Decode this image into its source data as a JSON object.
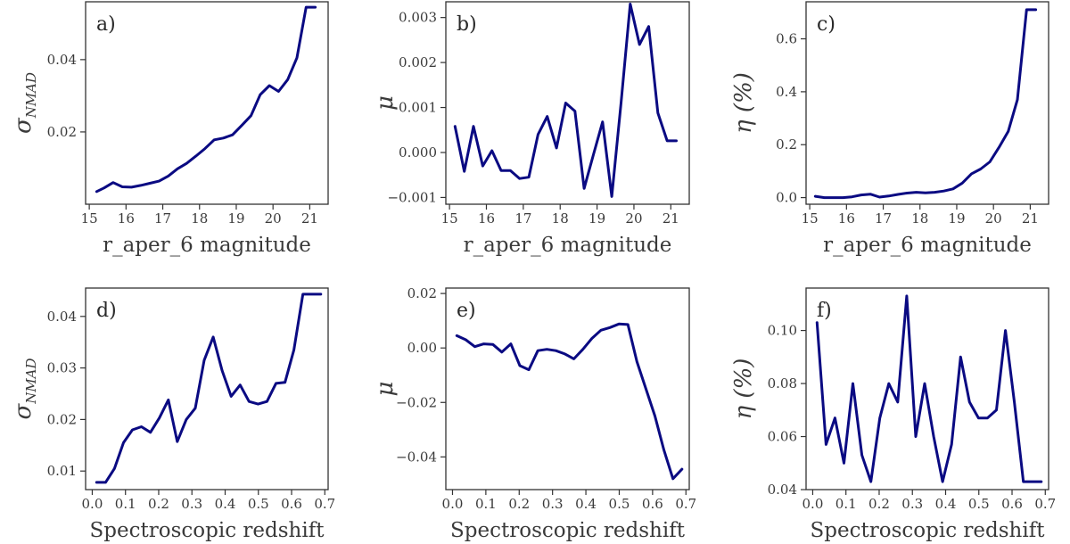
{
  "colors": {
    "line": "#0a0a82",
    "axis": "#333333",
    "text": "#3a3a3a"
  },
  "chart_data": [
    {
      "type": "line",
      "panel": "a)",
      "xlabel": "r_aper_6 magnitude",
      "ylabel_base": "σ",
      "ylabel_sub": "NMAD",
      "xlim": [
        14.9,
        21.5
      ],
      "ylim": [
        0.0,
        0.056
      ],
      "xticks": [
        15,
        16,
        17,
        18,
        19,
        20,
        21
      ],
      "yticks": [
        0.02,
        0.04
      ],
      "ytick_labels": [
        "0.02",
        "0.04"
      ],
      "x": [
        15.2,
        15.4,
        15.65,
        15.9,
        16.15,
        16.4,
        16.65,
        16.9,
        17.15,
        17.4,
        17.65,
        17.9,
        18.15,
        18.4,
        18.65,
        18.9,
        19.15,
        19.4,
        19.65,
        19.9,
        20.15,
        20.4,
        20.65,
        20.9,
        21.15
      ],
      "y": [
        0.0035,
        0.0045,
        0.006,
        0.0048,
        0.0047,
        0.0052,
        0.0058,
        0.0064,
        0.0078,
        0.0098,
        0.0113,
        0.0133,
        0.0154,
        0.0178,
        0.0183,
        0.0192,
        0.0218,
        0.0245,
        0.0303,
        0.0328,
        0.0312,
        0.0345,
        0.0405,
        0.0545,
        0.0545
      ]
    },
    {
      "type": "line",
      "panel": "b)",
      "xlabel": "r_aper_6 magnitude",
      "ylabel_base": "μ",
      "ylabel_sub": "",
      "xlim": [
        14.9,
        21.5
      ],
      "ylim": [
        -0.00115,
        0.00335
      ],
      "xticks": [
        15,
        16,
        17,
        18,
        19,
        20,
        21
      ],
      "yticks": [
        -0.001,
        0.0,
        0.001,
        0.002,
        0.003
      ],
      "ytick_labels": [
        "−0.001",
        "0.000",
        "0.001",
        "0.002",
        "0.003"
      ],
      "x": [
        15.15,
        15.4,
        15.65,
        15.9,
        16.15,
        16.4,
        16.65,
        16.9,
        17.15,
        17.4,
        17.65,
        17.9,
        18.15,
        18.4,
        18.65,
        18.9,
        19.15,
        19.4,
        19.65,
        19.9,
        20.15,
        20.4,
        20.65,
        20.9,
        21.15
      ],
      "y": [
        0.00058,
        -0.00042,
        0.00058,
        -0.0003,
        4e-05,
        -0.0004,
        -0.0004,
        -0.00058,
        -0.00055,
        0.0004,
        0.0008,
        0.0001,
        0.0011,
        0.00092,
        -0.0008,
        -5e-05,
        0.00068,
        -0.00098,
        0.0011,
        0.0033,
        0.0024,
        0.0028,
        0.00088,
        0.00026,
        0.00026
      ]
    },
    {
      "type": "line",
      "panel": "c)",
      "xlabel": "r_aper_6 magnitude",
      "ylabel_base": "η (%)",
      "ylabel_sub": "",
      "xlim": [
        14.9,
        21.5
      ],
      "ylim": [
        -0.025,
        0.74
      ],
      "xticks": [
        15,
        16,
        17,
        18,
        19,
        20,
        21
      ],
      "yticks": [
        0.0,
        0.2,
        0.4,
        0.6
      ],
      "ytick_labels": [
        "0.0",
        "0.2",
        "0.4",
        "0.6"
      ],
      "x": [
        15.15,
        15.4,
        15.65,
        15.9,
        16.15,
        16.4,
        16.65,
        16.9,
        17.15,
        17.4,
        17.65,
        17.9,
        18.15,
        18.4,
        18.65,
        18.9,
        19.15,
        19.4,
        19.65,
        19.9,
        20.15,
        20.4,
        20.65,
        20.9,
        21.15
      ],
      "y": [
        0.005,
        0.0,
        0.0,
        0.0,
        0.003,
        0.01,
        0.013,
        0.002,
        0.006,
        0.012,
        0.017,
        0.02,
        0.018,
        0.02,
        0.025,
        0.033,
        0.055,
        0.09,
        0.108,
        0.135,
        0.19,
        0.25,
        0.37,
        0.71,
        0.71
      ]
    },
    {
      "type": "line",
      "panel": "d)",
      "xlabel": "Spectroscopic redshift",
      "ylabel_base": "σ",
      "ylabel_sub": "NMAD",
      "xlim": [
        -0.02,
        0.71
      ],
      "ylim": [
        0.0064,
        0.0455
      ],
      "xticks": [
        0.0,
        0.1,
        0.2,
        0.3,
        0.4,
        0.5,
        0.6,
        0.7
      ],
      "xtick_labels": [
        "0.0",
        "0.1",
        "0.2",
        "0.3",
        "0.4",
        "0.5",
        "0.6",
        "0.7"
      ],
      "yticks": [
        0.01,
        0.02,
        0.03,
        0.04
      ],
      "ytick_labels": [
        "0.01",
        "0.02",
        "0.03",
        "0.04"
      ],
      "x": [
        0.013,
        0.04,
        0.067,
        0.094,
        0.121,
        0.148,
        0.175,
        0.202,
        0.229,
        0.256,
        0.283,
        0.31,
        0.337,
        0.364,
        0.391,
        0.418,
        0.445,
        0.472,
        0.499,
        0.526,
        0.553,
        0.58,
        0.607,
        0.634,
        0.661,
        0.688
      ],
      "y": [
        0.0078,
        0.0078,
        0.0105,
        0.0155,
        0.018,
        0.0186,
        0.0175,
        0.0203,
        0.0238,
        0.0157,
        0.02,
        0.0222,
        0.0315,
        0.036,
        0.0295,
        0.0245,
        0.0267,
        0.0235,
        0.023,
        0.0235,
        0.027,
        0.0272,
        0.0335,
        0.0443,
        0.0443,
        0.0443
      ]
    },
    {
      "type": "line",
      "panel": "e)",
      "xlabel": "Spectroscopic redshift",
      "ylabel_base": "μ",
      "ylabel_sub": "",
      "xlim": [
        -0.02,
        0.71
      ],
      "ylim": [
        -0.052,
        0.022
      ],
      "xticks": [
        0.0,
        0.1,
        0.2,
        0.3,
        0.4,
        0.5,
        0.6,
        0.7
      ],
      "xtick_labels": [
        "0.0",
        "0.1",
        "0.2",
        "0.3",
        "0.4",
        "0.5",
        "0.6",
        "0.7"
      ],
      "yticks": [
        -0.04,
        -0.02,
        0.0,
        0.02
      ],
      "ytick_labels": [
        "−0.04",
        "−0.02",
        "0.00",
        "0.02"
      ],
      "x": [
        0.013,
        0.04,
        0.067,
        0.094,
        0.121,
        0.148,
        0.175,
        0.202,
        0.229,
        0.256,
        0.283,
        0.31,
        0.337,
        0.364,
        0.391,
        0.418,
        0.445,
        0.472,
        0.499,
        0.526,
        0.553,
        0.58,
        0.607,
        0.634,
        0.661,
        0.688
      ],
      "y": [
        0.0045,
        0.003,
        0.0005,
        0.0015,
        0.0013,
        -0.0015,
        0.0015,
        -0.0065,
        -0.008,
        -0.001,
        -0.0005,
        -0.001,
        -0.0022,
        -0.004,
        -0.0005,
        0.0035,
        0.0065,
        0.0075,
        0.0088,
        0.0086,
        -0.005,
        -0.015,
        -0.025,
        -0.0375,
        -0.048,
        -0.0445
      ]
    },
    {
      "type": "line",
      "panel": "f)",
      "xlabel": "Spectroscopic redshift",
      "ylabel_base": "η (%)",
      "ylabel_sub": "",
      "xlim": [
        -0.02,
        0.71
      ],
      "ylim": [
        0.04,
        0.116
      ],
      "xticks": [
        0.0,
        0.1,
        0.2,
        0.3,
        0.4,
        0.5,
        0.6,
        0.7
      ],
      "xtick_labels": [
        "0.0",
        "0.1",
        "0.2",
        "0.3",
        "0.4",
        "0.5",
        "0.6",
        "0.7"
      ],
      "yticks": [
        0.04,
        0.06,
        0.08,
        0.1
      ],
      "ytick_labels": [
        "0.04",
        "0.06",
        "0.08",
        "0.10"
      ],
      "x": [
        0.013,
        0.04,
        0.067,
        0.094,
        0.121,
        0.148,
        0.175,
        0.202,
        0.229,
        0.256,
        0.283,
        0.31,
        0.337,
        0.364,
        0.391,
        0.418,
        0.445,
        0.472,
        0.499,
        0.526,
        0.553,
        0.58,
        0.607,
        0.634,
        0.661,
        0.688
      ],
      "y": [
        0.103,
        0.057,
        0.067,
        0.05,
        0.08,
        0.053,
        0.043,
        0.067,
        0.08,
        0.073,
        0.113,
        0.06,
        0.08,
        0.06,
        0.043,
        0.057,
        0.09,
        0.073,
        0.067,
        0.067,
        0.07,
        0.1,
        0.073,
        0.043,
        0.043,
        0.043
      ]
    }
  ]
}
